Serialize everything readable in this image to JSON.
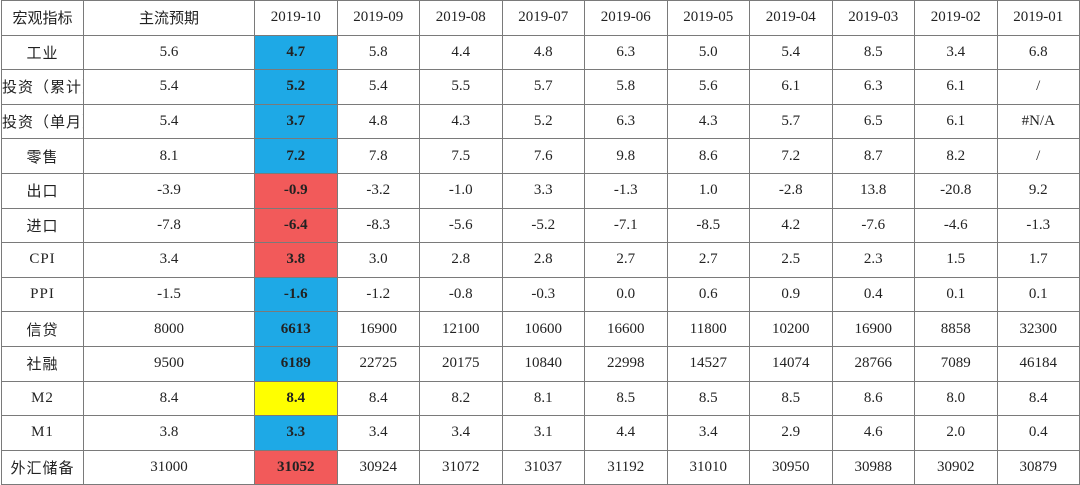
{
  "colors": {
    "blue": "#1ea9e6",
    "red": "#f25a5a",
    "yellow": "#ffff00"
  },
  "header": [
    "宏观指标",
    "主流预期",
    "2019-10",
    "2019-09",
    "2019-08",
    "2019-07",
    "2019-06",
    "2019-05",
    "2019-04",
    "2019-03",
    "2019-02",
    "2019-01"
  ],
  "rows": [
    {
      "label": "工业",
      "expected": "5.6",
      "current": "4.7",
      "highlight": "blue",
      "history": [
        "5.8",
        "4.4",
        "4.8",
        "6.3",
        "5.0",
        "5.4",
        "8.5",
        "3.4",
        "6.8"
      ]
    },
    {
      "label": "投资（累计）",
      "expected": "5.4",
      "current": "5.2",
      "highlight": "blue",
      "history": [
        "5.4",
        "5.5",
        "5.7",
        "5.8",
        "5.6",
        "6.1",
        "6.3",
        "6.1",
        "/"
      ]
    },
    {
      "label": "投资（单月）",
      "expected": "5.4",
      "current": "3.7",
      "highlight": "blue",
      "history": [
        "4.8",
        "4.3",
        "5.2",
        "6.3",
        "4.3",
        "5.7",
        "6.5",
        "6.1",
        "#N/A"
      ]
    },
    {
      "label": "零售",
      "expected": "8.1",
      "current": "7.2",
      "highlight": "blue",
      "history": [
        "7.8",
        "7.5",
        "7.6",
        "9.8",
        "8.6",
        "7.2",
        "8.7",
        "8.2",
        "/"
      ]
    },
    {
      "label": "出口",
      "expected": "-3.9",
      "current": "-0.9",
      "highlight": "red",
      "history": [
        "-3.2",
        "-1.0",
        "3.3",
        "-1.3",
        "1.0",
        "-2.8",
        "13.8",
        "-20.8",
        "9.2"
      ]
    },
    {
      "label": "进口",
      "expected": "-7.8",
      "current": "-6.4",
      "highlight": "red",
      "history": [
        "-8.3",
        "-5.6",
        "-5.2",
        "-7.1",
        "-8.5",
        "4.2",
        "-7.6",
        "-4.6",
        "-1.3"
      ]
    },
    {
      "label": "CPI",
      "expected": "3.4",
      "current": "3.8",
      "highlight": "red",
      "history": [
        "3.0",
        "2.8",
        "2.8",
        "2.7",
        "2.7",
        "2.5",
        "2.3",
        "1.5",
        "1.7"
      ]
    },
    {
      "label": "PPI",
      "expected": "-1.5",
      "current": "-1.6",
      "highlight": "blue",
      "history": [
        "-1.2",
        "-0.8",
        "-0.3",
        "0.0",
        "0.6",
        "0.9",
        "0.4",
        "0.1",
        "0.1"
      ]
    },
    {
      "label": "信贷",
      "expected": "8000",
      "current": "6613",
      "highlight": "blue",
      "history": [
        "16900",
        "12100",
        "10600",
        "16600",
        "11800",
        "10200",
        "16900",
        "8858",
        "32300"
      ]
    },
    {
      "label": "社融",
      "expected": "9500",
      "current": "6189",
      "highlight": "blue",
      "history": [
        "22725",
        "20175",
        "10840",
        "22998",
        "14527",
        "14074",
        "28766",
        "7089",
        "46184"
      ]
    },
    {
      "label": "M2",
      "expected": "8.4",
      "current": "8.4",
      "highlight": "yellow",
      "history": [
        "8.4",
        "8.2",
        "8.1",
        "8.5",
        "8.5",
        "8.5",
        "8.6",
        "8.0",
        "8.4"
      ]
    },
    {
      "label": "M1",
      "expected": "3.8",
      "current": "3.3",
      "highlight": "blue",
      "history": [
        "3.4",
        "3.4",
        "3.1",
        "4.4",
        "3.4",
        "2.9",
        "4.6",
        "2.0",
        "0.4"
      ]
    },
    {
      "label": "外汇储备",
      "expected": "31000",
      "current": "31052",
      "highlight": "red",
      "history": [
        "30924",
        "31072",
        "31037",
        "31192",
        "31010",
        "30950",
        "30988",
        "30902",
        "30879"
      ]
    }
  ]
}
